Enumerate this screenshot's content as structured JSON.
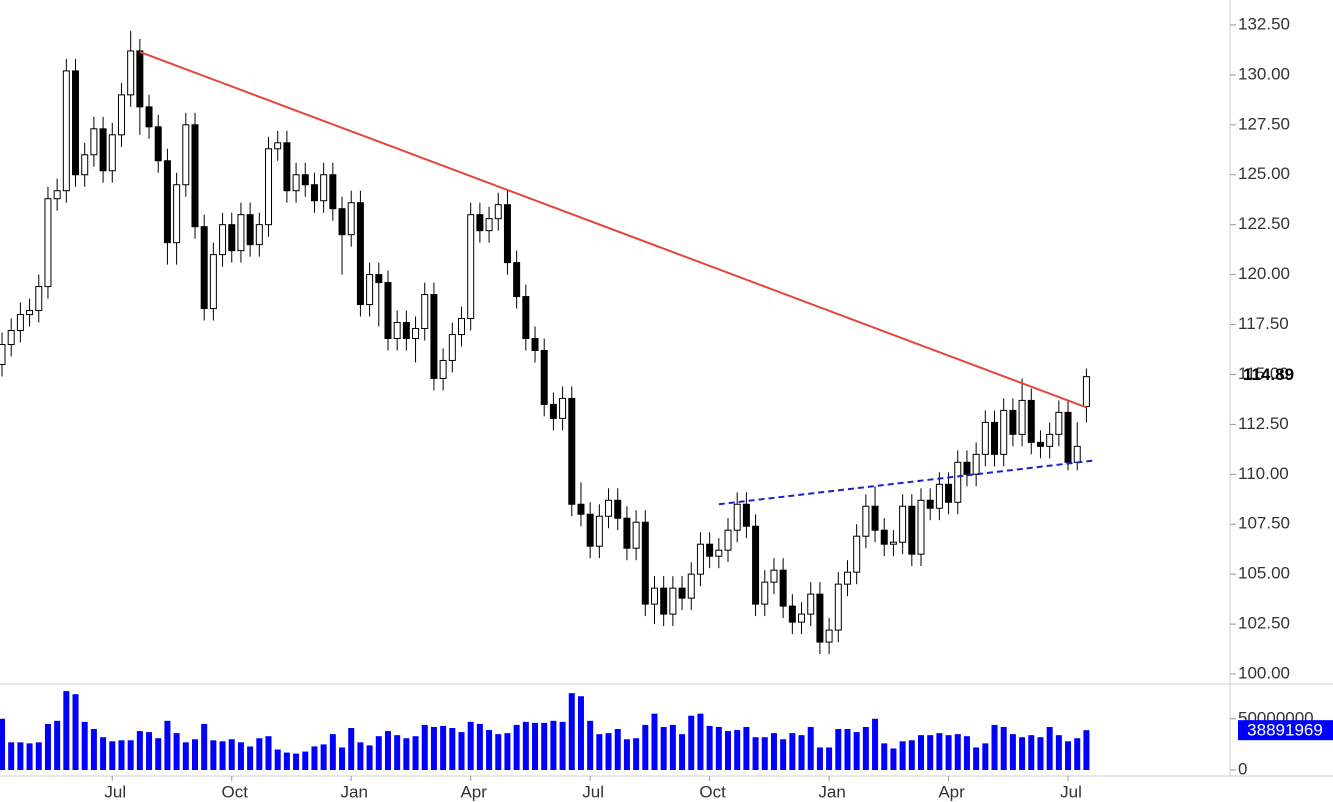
{
  "chart_data": {
    "type": "candlestick",
    "categories": [
      null,
      null,
      null,
      null,
      null,
      null,
      null,
      null,
      null,
      null,
      null,
      null,
      "Jul",
      null,
      null,
      null,
      null,
      null,
      null,
      null,
      null,
      null,
      null,
      null,
      null,
      "Oct",
      null,
      null,
      null,
      null,
      null,
      null,
      null,
      null,
      null,
      null,
      null,
      null,
      "Jan",
      null,
      null,
      null,
      null,
      null,
      null,
      null,
      null,
      null,
      null,
      null,
      null,
      "Apr",
      null,
      null,
      null,
      null,
      null,
      null,
      null,
      null,
      null,
      null,
      null,
      null,
      "Jul",
      null,
      null,
      null,
      null,
      null,
      null,
      null,
      null,
      null,
      null,
      null,
      null,
      "Oct",
      null,
      null,
      null,
      null,
      null,
      null,
      null,
      null,
      null,
      null,
      null,
      null,
      "Jan",
      null,
      null,
      null,
      null,
      null,
      null,
      null,
      null,
      null,
      null,
      null,
      null,
      "Apr",
      null,
      null,
      null,
      null,
      null,
      null,
      null,
      null,
      null,
      null,
      null,
      null,
      "Jul",
      null,
      null
    ],
    "open": [
      115.5,
      116.5,
      117.2,
      118.0,
      118.2,
      119.4,
      123.8,
      124.2,
      130.2,
      125.0,
      126.0,
      127.3,
      125.2,
      127.0,
      129.0,
      131.2,
      128.4,
      127.4,
      125.7,
      121.6,
      124.5,
      127.5,
      122.4,
      118.3,
      121.0,
      122.5,
      121.2,
      123.0,
      121.5,
      122.5,
      126.3,
      126.6,
      124.2,
      125.0,
      124.5,
      123.7,
      125.0,
      123.3,
      122.0,
      123.6,
      118.5,
      120.0,
      119.6,
      116.8,
      117.6,
      116.8,
      117.3,
      119.0,
      114.8,
      115.7,
      117.0,
      117.8,
      123.0,
      122.2,
      122.8,
      123.5,
      120.6,
      118.9,
      116.8,
      116.2,
      113.5,
      112.8,
      113.8,
      108.5,
      108.0,
      106.4,
      107.9,
      108.7,
      107.8,
      106.3,
      107.6,
      103.5,
      104.3,
      103.0,
      104.3,
      103.8,
      105.0,
      106.5,
      105.9,
      106.2,
      107.2,
      108.5,
      107.4,
      103.5,
      104.6,
      105.2,
      103.4,
      102.6,
      103.0,
      104.0,
      101.6,
      102.2,
      104.5,
      105.1,
      106.9,
      108.4,
      107.2,
      106.5,
      106.6,
      108.4,
      106.0,
      108.7,
      108.3,
      109.5,
      108.6,
      110.6,
      110.0,
      111.0,
      112.6,
      111.0,
      113.2,
      112.0,
      113.7,
      111.6,
      111.4,
      112.0,
      113.1,
      110.6,
      113.4
    ],
    "high": [
      117.1,
      117.8,
      118.6,
      118.8,
      120.0,
      124.4,
      124.8,
      130.8,
      130.8,
      126.6,
      127.9,
      127.9,
      127.6,
      129.6,
      132.2,
      131.8,
      129.0,
      128.0,
      126.3,
      125.1,
      128.1,
      128.1,
      123.0,
      121.6,
      123.1,
      123.1,
      123.6,
      123.6,
      123.1,
      126.9,
      127.2,
      127.2,
      125.6,
      125.6,
      125.1,
      125.6,
      125.6,
      123.9,
      124.2,
      124.2,
      120.6,
      120.6,
      120.2,
      118.2,
      118.2,
      117.9,
      119.6,
      119.6,
      116.3,
      117.6,
      118.4,
      123.6,
      123.6,
      123.4,
      124.1,
      124.2,
      121.2,
      119.5,
      117.4,
      116.8,
      114.1,
      114.4,
      114.4,
      109.6,
      108.6,
      108.5,
      109.3,
      109.3,
      108.4,
      108.2,
      108.2,
      104.9,
      104.9,
      104.9,
      104.9,
      105.6,
      107.1,
      107.1,
      106.8,
      107.8,
      109.1,
      109.1,
      108.0,
      105.2,
      105.8,
      105.8,
      104.0,
      103.6,
      104.6,
      104.6,
      102.8,
      105.1,
      105.7,
      107.5,
      109.0,
      109.4,
      107.8,
      107.2,
      109.0,
      109.0,
      109.3,
      109.3,
      110.1,
      110.1,
      111.2,
      111.2,
      111.6,
      113.2,
      113.2,
      113.8,
      113.8,
      114.8,
      114.3,
      112.2,
      112.6,
      113.7,
      113.7,
      112.6,
      115.3
    ],
    "low": [
      114.9,
      115.9,
      116.6,
      117.4,
      117.6,
      118.8,
      123.2,
      123.6,
      124.4,
      124.4,
      125.4,
      124.6,
      124.6,
      126.4,
      128.4,
      127.0,
      126.8,
      125.1,
      120.5,
      120.5,
      123.9,
      121.8,
      117.7,
      117.7,
      120.4,
      120.6,
      120.6,
      120.9,
      120.9,
      121.9,
      125.7,
      123.6,
      123.6,
      123.9,
      123.1,
      123.1,
      122.7,
      120.0,
      121.4,
      117.9,
      117.9,
      117.4,
      116.2,
      116.2,
      116.2,
      115.6,
      116.7,
      114.2,
      114.2,
      115.1,
      116.4,
      117.2,
      121.6,
      121.6,
      122.2,
      120.0,
      118.3,
      116.2,
      115.6,
      112.9,
      112.2,
      112.2,
      107.9,
      107.4,
      105.8,
      105.8,
      107.3,
      107.2,
      105.7,
      105.7,
      102.9,
      102.5,
      102.4,
      102.4,
      103.2,
      103.2,
      104.4,
      105.3,
      105.3,
      105.6,
      106.6,
      106.8,
      102.9,
      102.9,
      104.0,
      102.8,
      102.0,
      102.0,
      102.4,
      101.0,
      101.0,
      101.6,
      103.9,
      104.5,
      106.3,
      106.6,
      105.9,
      105.9,
      106.0,
      105.4,
      105.4,
      107.7,
      107.7,
      108.0,
      108.0,
      109.4,
      109.4,
      110.4,
      110.4,
      110.4,
      111.4,
      111.4,
      111.0,
      110.8,
      110.8,
      111.4,
      110.2,
      110.2,
      112.6
    ],
    "close": [
      116.5,
      117.2,
      118.0,
      118.2,
      119.4,
      123.8,
      124.2,
      130.2,
      125.0,
      126.0,
      127.3,
      125.2,
      127.0,
      129.0,
      131.2,
      128.4,
      127.4,
      125.7,
      121.6,
      124.5,
      127.5,
      122.4,
      118.3,
      121.0,
      122.5,
      121.2,
      123.0,
      121.5,
      122.5,
      126.3,
      126.6,
      124.2,
      125.0,
      124.5,
      123.7,
      125.0,
      123.3,
      122.0,
      123.6,
      118.5,
      120.0,
      119.6,
      116.8,
      117.6,
      116.8,
      117.3,
      119.0,
      114.8,
      115.7,
      117.0,
      117.8,
      123.0,
      122.2,
      122.8,
      123.5,
      120.6,
      118.9,
      116.8,
      116.2,
      113.5,
      112.8,
      113.8,
      108.5,
      108.0,
      106.4,
      107.9,
      108.7,
      107.8,
      106.3,
      107.6,
      103.5,
      104.3,
      103.0,
      104.3,
      103.8,
      105.0,
      106.5,
      105.9,
      106.2,
      107.2,
      108.5,
      107.4,
      103.5,
      104.6,
      105.2,
      103.4,
      102.6,
      103.0,
      104.0,
      101.6,
      102.2,
      104.5,
      105.1,
      106.9,
      108.4,
      107.2,
      106.5,
      106.6,
      108.4,
      106.0,
      108.7,
      108.3,
      109.5,
      108.6,
      110.6,
      110.0,
      111.0,
      112.6,
      111.0,
      113.2,
      112.0,
      113.7,
      111.6,
      111.4,
      112.0,
      113.1,
      110.6,
      111.4,
      114.89
    ],
    "volume": [
      50000000,
      27000000,
      27000000,
      26000000,
      27000000,
      45000000,
      48000000,
      77000000,
      74000000,
      47000000,
      40000000,
      32000000,
      28000000,
      29000000,
      29000000,
      38000000,
      37000000,
      31000000,
      48000000,
      36000000,
      27000000,
      30000000,
      45000000,
      29000000,
      28000000,
      30000000,
      27000000,
      23000000,
      31000000,
      33000000,
      20000000,
      17000000,
      16000000,
      18000000,
      23000000,
      25000000,
      35000000,
      22000000,
      41000000,
      27000000,
      24000000,
      33000000,
      38000000,
      34000000,
      31000000,
      33000000,
      44000000,
      42000000,
      43000000,
      41000000,
      37000000,
      47000000,
      45000000,
      39000000,
      35000000,
      36000000,
      44000000,
      47000000,
      46000000,
      46000000,
      48000000,
      47000000,
      75000000,
      72000000,
      48000000,
      35000000,
      36000000,
      40000000,
      30000000,
      31000000,
      44000000,
      55000000,
      42000000,
      44000000,
      35000000,
      53000000,
      55000000,
      43000000,
      42000000,
      38000000,
      39000000,
      42000000,
      32000000,
      32000000,
      36000000,
      30000000,
      36000000,
      34000000,
      42000000,
      22000000,
      22000000,
      40000000,
      40000000,
      37000000,
      42000000,
      50000000,
      26000000,
      21000000,
      28000000,
      29000000,
      34000000,
      34000000,
      36000000,
      34000000,
      35000000,
      33000000,
      22000000,
      26000000,
      44000000,
      42000000,
      35000000,
      32000000,
      34000000,
      32000000,
      42000000,
      34000000,
      28000000,
      31000000,
      38891969
    ],
    "ylim": [
      99.5,
      133.75
    ],
    "yticks": [
      {
        "value": 100,
        "label": "100.00"
      },
      {
        "value": 102.5,
        "label": "102.50"
      },
      {
        "value": 105,
        "label": "105.00"
      },
      {
        "value": 107.5,
        "label": "107.50"
      },
      {
        "value": 110,
        "label": "110.00"
      },
      {
        "value": 112.5,
        "label": "112.50"
      },
      {
        "value": 115,
        "label": "115.00"
      },
      {
        "value": 117.5,
        "label": "117.50"
      },
      {
        "value": 120,
        "label": "120.00"
      },
      {
        "value": 122.5,
        "label": "122.50"
      },
      {
        "value": 125,
        "label": "125.00"
      },
      {
        "value": 127.5,
        "label": "127.50"
      },
      {
        "value": 130,
        "label": "130.00"
      },
      {
        "value": 132.5,
        "label": "132.50"
      }
    ],
    "y2lim": [
      0,
      82000000
    ],
    "y2ticks": [
      0,
      50000000
    ],
    "up_color": "#ffffff",
    "down_color": "#000000",
    "volume_color": "#0000ff",
    "trendlines": [
      {
        "color": "#e0483e",
        "dashed": false,
        "x": [
          15,
          118
        ],
        "y": [
          131.15,
          113.35
        ]
      },
      {
        "color": "#2020cc",
        "dashed": true,
        "x": [
          78,
          119
        ],
        "y": [
          108.5,
          110.7
        ]
      }
    ]
  }
}
